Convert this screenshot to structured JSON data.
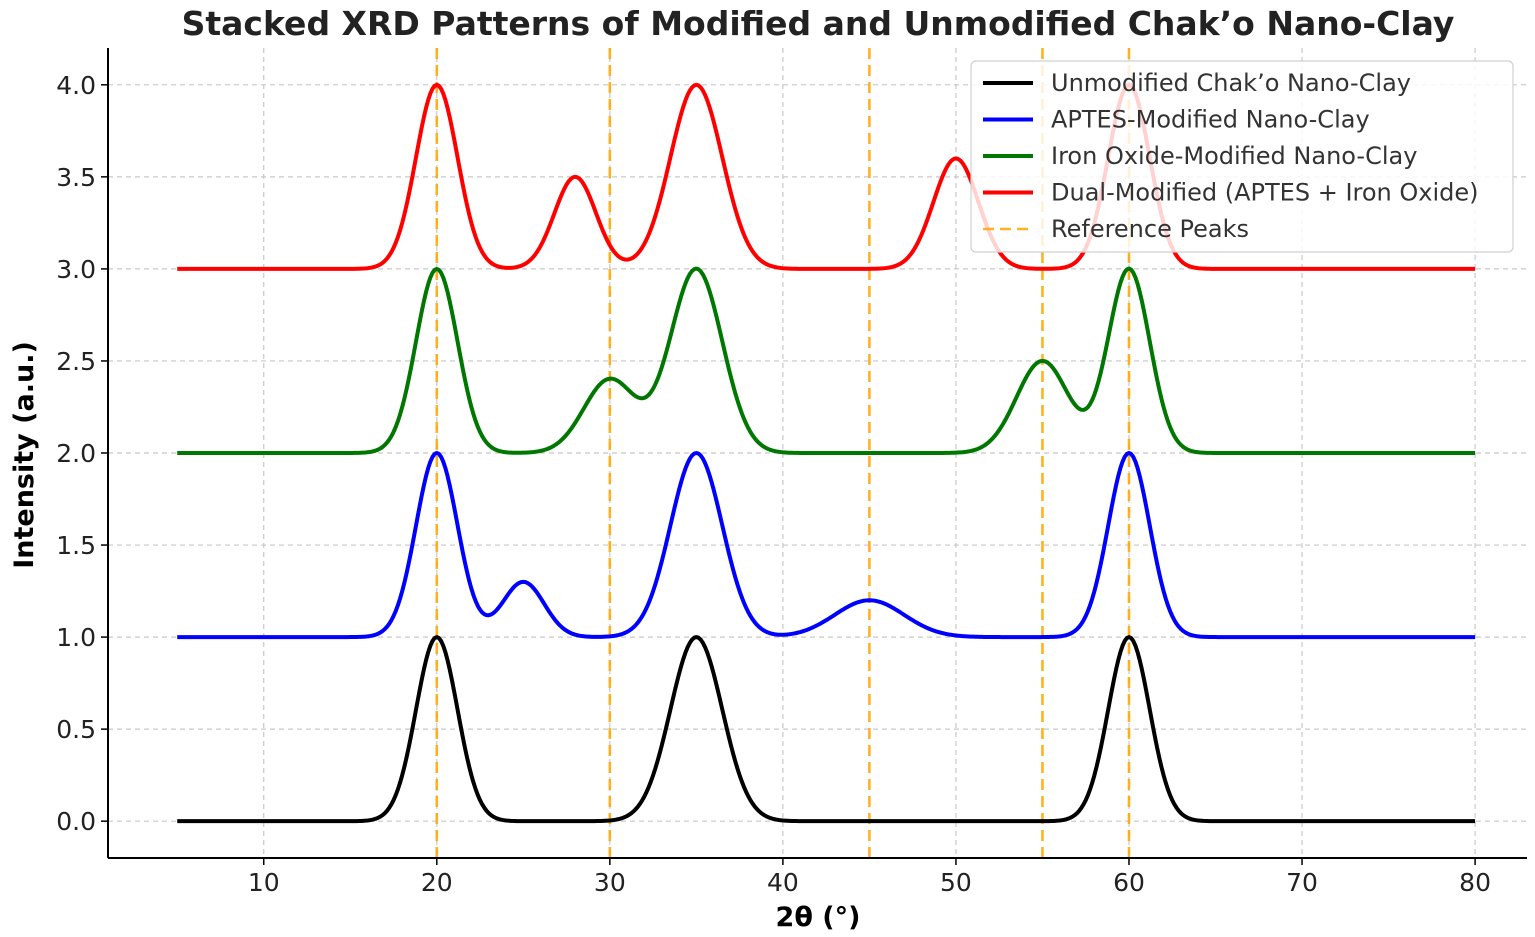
{
  "chart_data": {
    "type": "line",
    "title": "Stacked XRD Patterns of Modified and Unmodified Chak’o Nano-Clay",
    "xlabel": "2θ (°)",
    "ylabel": "Intensity (a.u.)",
    "xlim": [
      1,
      83
    ],
    "ylim": [
      -0.2,
      4.2
    ],
    "xticks": [
      10,
      20,
      30,
      40,
      50,
      60,
      70,
      80
    ],
    "yticks": [
      0.0,
      0.5,
      1.0,
      1.5,
      2.0,
      2.5,
      3.0,
      3.5,
      4.0
    ],
    "xtick_labels": [
      "10",
      "20",
      "30",
      "40",
      "50",
      "60",
      "70",
      "80"
    ],
    "ytick_labels": [
      "0.0",
      "0.5",
      "1.0",
      "1.5",
      "2.0",
      "2.5",
      "3.0",
      "3.5",
      "4.0"
    ],
    "grid": true,
    "legend_position": "top-right",
    "x_range": [
      5,
      80
    ],
    "series": [
      {
        "name": "Unmodified Chak’o Nano-Clay",
        "color": "#000000",
        "offset": 0,
        "peaks": [
          {
            "center": 20,
            "height": 1.0,
            "width": 1.2
          },
          {
            "center": 35,
            "height": 1.0,
            "width": 1.5
          },
          {
            "center": 60,
            "height": 1.0,
            "width": 1.2
          }
        ]
      },
      {
        "name": "APTES-Modified Nano-Clay",
        "color": "#0000ff",
        "offset": 1,
        "peaks": [
          {
            "center": 20,
            "height": 1.0,
            "width": 1.2
          },
          {
            "center": 25,
            "height": 0.3,
            "width": 1.2
          },
          {
            "center": 35,
            "height": 1.0,
            "width": 1.5
          },
          {
            "center": 45,
            "height": 0.2,
            "width": 2.0
          },
          {
            "center": 60,
            "height": 1.0,
            "width": 1.2
          }
        ]
      },
      {
        "name": "Iron Oxide-Modified Nano-Clay",
        "color": "#007700",
        "offset": 2,
        "peaks": [
          {
            "center": 20,
            "height": 1.0,
            "width": 1.2
          },
          {
            "center": 30,
            "height": 0.4,
            "width": 1.5
          },
          {
            "center": 35,
            "height": 1.0,
            "width": 1.5
          },
          {
            "center": 55,
            "height": 0.5,
            "width": 1.5
          },
          {
            "center": 60,
            "height": 1.0,
            "width": 1.2
          }
        ]
      },
      {
        "name": "Dual-Modified (APTES + Iron Oxide)",
        "color": "#ff0000",
        "offset": 3,
        "peaks": [
          {
            "center": 20,
            "height": 1.0,
            "width": 1.2
          },
          {
            "center": 28,
            "height": 0.5,
            "width": 1.2
          },
          {
            "center": 35,
            "height": 1.0,
            "width": 1.5
          },
          {
            "center": 50,
            "height": 0.6,
            "width": 1.3
          },
          {
            "center": 60,
            "height": 1.0,
            "width": 1.2
          }
        ]
      }
    ],
    "reference_peaks": {
      "name": "Reference Peaks",
      "color": "#ffa500",
      "positions": [
        20,
        30,
        45,
        55,
        60
      ]
    }
  }
}
